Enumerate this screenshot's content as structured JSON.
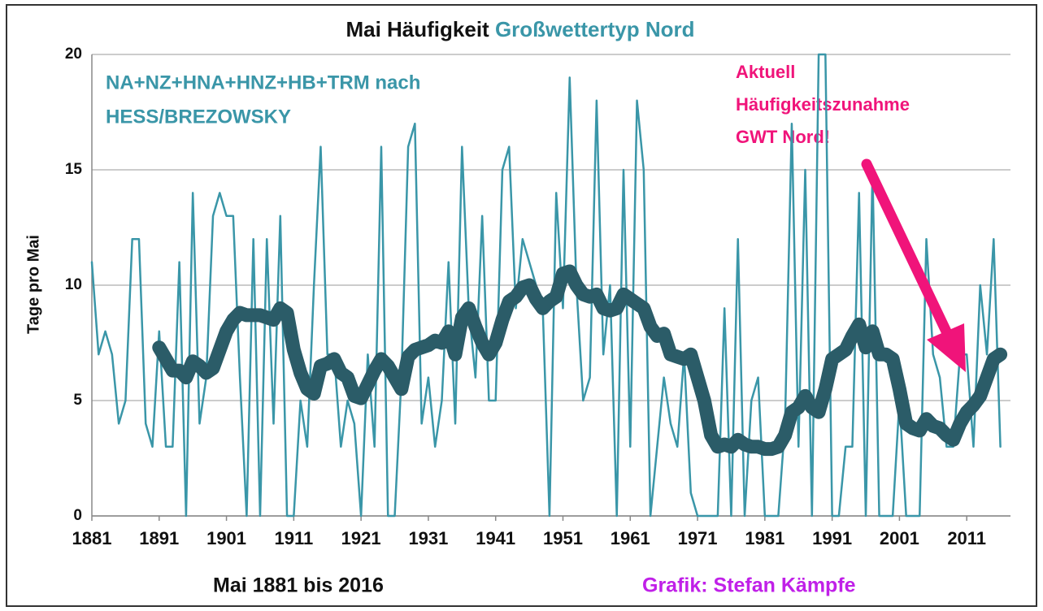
{
  "chart_data": {
    "type": "line",
    "title": "Mai Häufigkeit",
    "title_highlight": "Großwettertyp Nord",
    "y_label": "Tage pro Mai",
    "x_label": "Mai 1881 bis 2016",
    "credit": "Grafik: Stefan Kämpfe",
    "annotation_left": [
      "NA+NZ+HNA+HNZ+HB+TRM nach",
      "HESS/BREZOWSKY"
    ],
    "annotation_right": [
      "Aktuell",
      "Häufigkeitszunahme",
      "GWT Nord!"
    ],
    "x": [
      1881,
      1882,
      1883,
      1884,
      1885,
      1886,
      1887,
      1888,
      1889,
      1890,
      1891,
      1892,
      1893,
      1894,
      1895,
      1896,
      1897,
      1898,
      1899,
      1900,
      1901,
      1902,
      1903,
      1904,
      1905,
      1906,
      1907,
      1908,
      1909,
      1910,
      1911,
      1912,
      1913,
      1914,
      1915,
      1916,
      1917,
      1918,
      1919,
      1920,
      1921,
      1922,
      1923,
      1924,
      1925,
      1926,
      1927,
      1928,
      1929,
      1930,
      1931,
      1932,
      1933,
      1934,
      1935,
      1936,
      1937,
      1938,
      1939,
      1940,
      1941,
      1942,
      1943,
      1944,
      1945,
      1946,
      1947,
      1948,
      1949,
      1950,
      1951,
      1952,
      1953,
      1954,
      1955,
      1956,
      1957,
      1958,
      1959,
      1960,
      1961,
      1962,
      1963,
      1964,
      1965,
      1966,
      1967,
      1968,
      1969,
      1970,
      1971,
      1972,
      1973,
      1974,
      1975,
      1976,
      1977,
      1978,
      1979,
      1980,
      1981,
      1982,
      1983,
      1984,
      1985,
      1986,
      1987,
      1988,
      1989,
      1990,
      1991,
      1992,
      1993,
      1994,
      1995,
      1996,
      1997,
      1998,
      1999,
      2000,
      2001,
      2002,
      2003,
      2004,
      2005,
      2006,
      2007,
      2008,
      2009,
      2010,
      2011,
      2012,
      2013,
      2014,
      2015,
      2016
    ],
    "series": [
      {
        "color": "#3a96a8",
        "width": 2.5,
        "values": [
          11,
          7,
          8,
          7,
          4,
          5,
          12,
          12,
          4,
          3,
          8,
          3,
          3,
          11,
          0,
          14,
          4,
          6,
          13,
          14,
          13,
          13,
          6,
          0,
          12,
          0,
          12,
          4,
          13,
          0,
          0,
          5,
          3,
          10,
          16,
          7,
          7,
          3,
          5,
          4,
          0,
          7,
          3,
          16,
          0,
          0,
          6,
          16,
          17,
          4,
          6,
          3,
          5,
          11,
          4,
          16,
          9,
          6,
          13,
          5,
          5,
          15,
          16,
          9,
          12,
          11,
          10,
          9,
          0,
          14,
          9,
          19,
          10,
          5,
          6,
          18,
          7,
          10,
          0,
          15,
          3,
          18,
          15,
          0,
          3,
          6,
          4,
          3,
          7,
          1,
          0,
          0,
          0,
          0,
          9,
          0,
          12,
          0,
          5,
          6,
          0,
          0,
          0,
          4,
          17,
          3,
          15,
          0,
          20,
          20,
          0,
          0,
          3,
          3,
          14,
          0,
          15,
          0,
          0,
          0,
          5,
          0,
          0,
          0,
          12,
          7,
          6,
          3,
          3,
          7,
          7,
          3,
          10,
          7,
          12,
          3
        ]
      },
      {
        "color": "#2b5c68",
        "width": 17,
        "values": [
          null,
          null,
          null,
          null,
          null,
          null,
          null,
          null,
          null,
          null,
          7.3,
          6.8,
          6.3,
          6.3,
          6.0,
          6.7,
          6.5,
          6.2,
          6.4,
          7.2,
          8.0,
          8.5,
          8.8,
          8.7,
          8.7,
          8.7,
          8.6,
          8.5,
          9.0,
          8.8,
          7.2,
          6.2,
          5.5,
          5.3,
          6.5,
          6.6,
          6.8,
          6.2,
          6.0,
          5.2,
          5.1,
          5.7,
          6.3,
          6.8,
          6.5,
          6.0,
          5.5,
          6.9,
          7.2,
          7.3,
          7.4,
          7.6,
          7.5,
          8.0,
          7.0,
          8.6,
          9.0,
          8.2,
          7.5,
          7.0,
          7.5,
          8.5,
          9.3,
          9.5,
          9.9,
          10.0,
          9.4,
          9.0,
          9.3,
          9.5,
          10.5,
          10.6,
          10.0,
          9.6,
          9.5,
          9.6,
          9.0,
          8.9,
          9.0,
          9.6,
          9.4,
          9.2,
          9.0,
          8.2,
          7.8,
          7.9,
          7.0,
          6.9,
          6.8,
          7.0,
          6.0,
          5.0,
          3.5,
          3.0,
          3.1,
          3.0,
          3.3,
          3.1,
          3.0,
          3.0,
          2.9,
          2.9,
          3.0,
          3.5,
          4.5,
          4.7,
          5.2,
          4.7,
          4.5,
          5.5,
          6.8,
          7.0,
          7.2,
          7.8,
          8.3,
          7.3,
          8.0,
          7.0,
          7.0,
          6.8,
          5.5,
          4.0,
          3.8,
          3.7,
          4.2,
          3.9,
          3.8,
          3.5,
          3.3,
          4.0,
          4.5,
          4.8,
          5.2,
          6.0,
          6.8,
          7.0
        ]
      }
    ],
    "xlim": [
      1881,
      2017.5
    ],
    "xticks": [
      1881,
      1891,
      1901,
      1911,
      1921,
      1931,
      1941,
      1951,
      1961,
      1971,
      1981,
      1991,
      2001,
      2011
    ],
    "ylim": [
      0,
      20
    ],
    "yticks": [
      0,
      5,
      10,
      15,
      20
    ],
    "grid": true
  }
}
